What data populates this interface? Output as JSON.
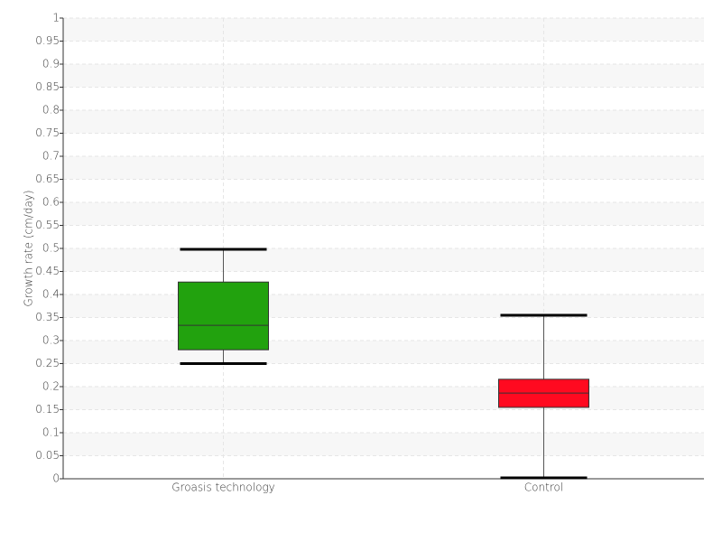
{
  "chart_data": {
    "type": "box",
    "y_label": "Growth rate (cm/day)",
    "categories": [
      "Groasis technology",
      "Control"
    ],
    "boxes": [
      {
        "min": 0.25,
        "q1": 0.28,
        "median": 0.333,
        "q3": 0.427,
        "max": 0.498,
        "color": "#22a20e"
      },
      {
        "min": 0.002,
        "q1": 0.155,
        "median": 0.186,
        "q3": 0.216,
        "max": 0.355,
        "color": "#ff0a20"
      }
    ],
    "ylim": [
      0,
      1
    ],
    "yticks": [
      0,
      0.05,
      0.1,
      0.15,
      0.2,
      0.25,
      0.3,
      0.35,
      0.4,
      0.45,
      0.5,
      0.55,
      0.6,
      0.65,
      0.7,
      0.75,
      0.8,
      0.85,
      0.9,
      0.95,
      1
    ],
    "grid": true
  }
}
